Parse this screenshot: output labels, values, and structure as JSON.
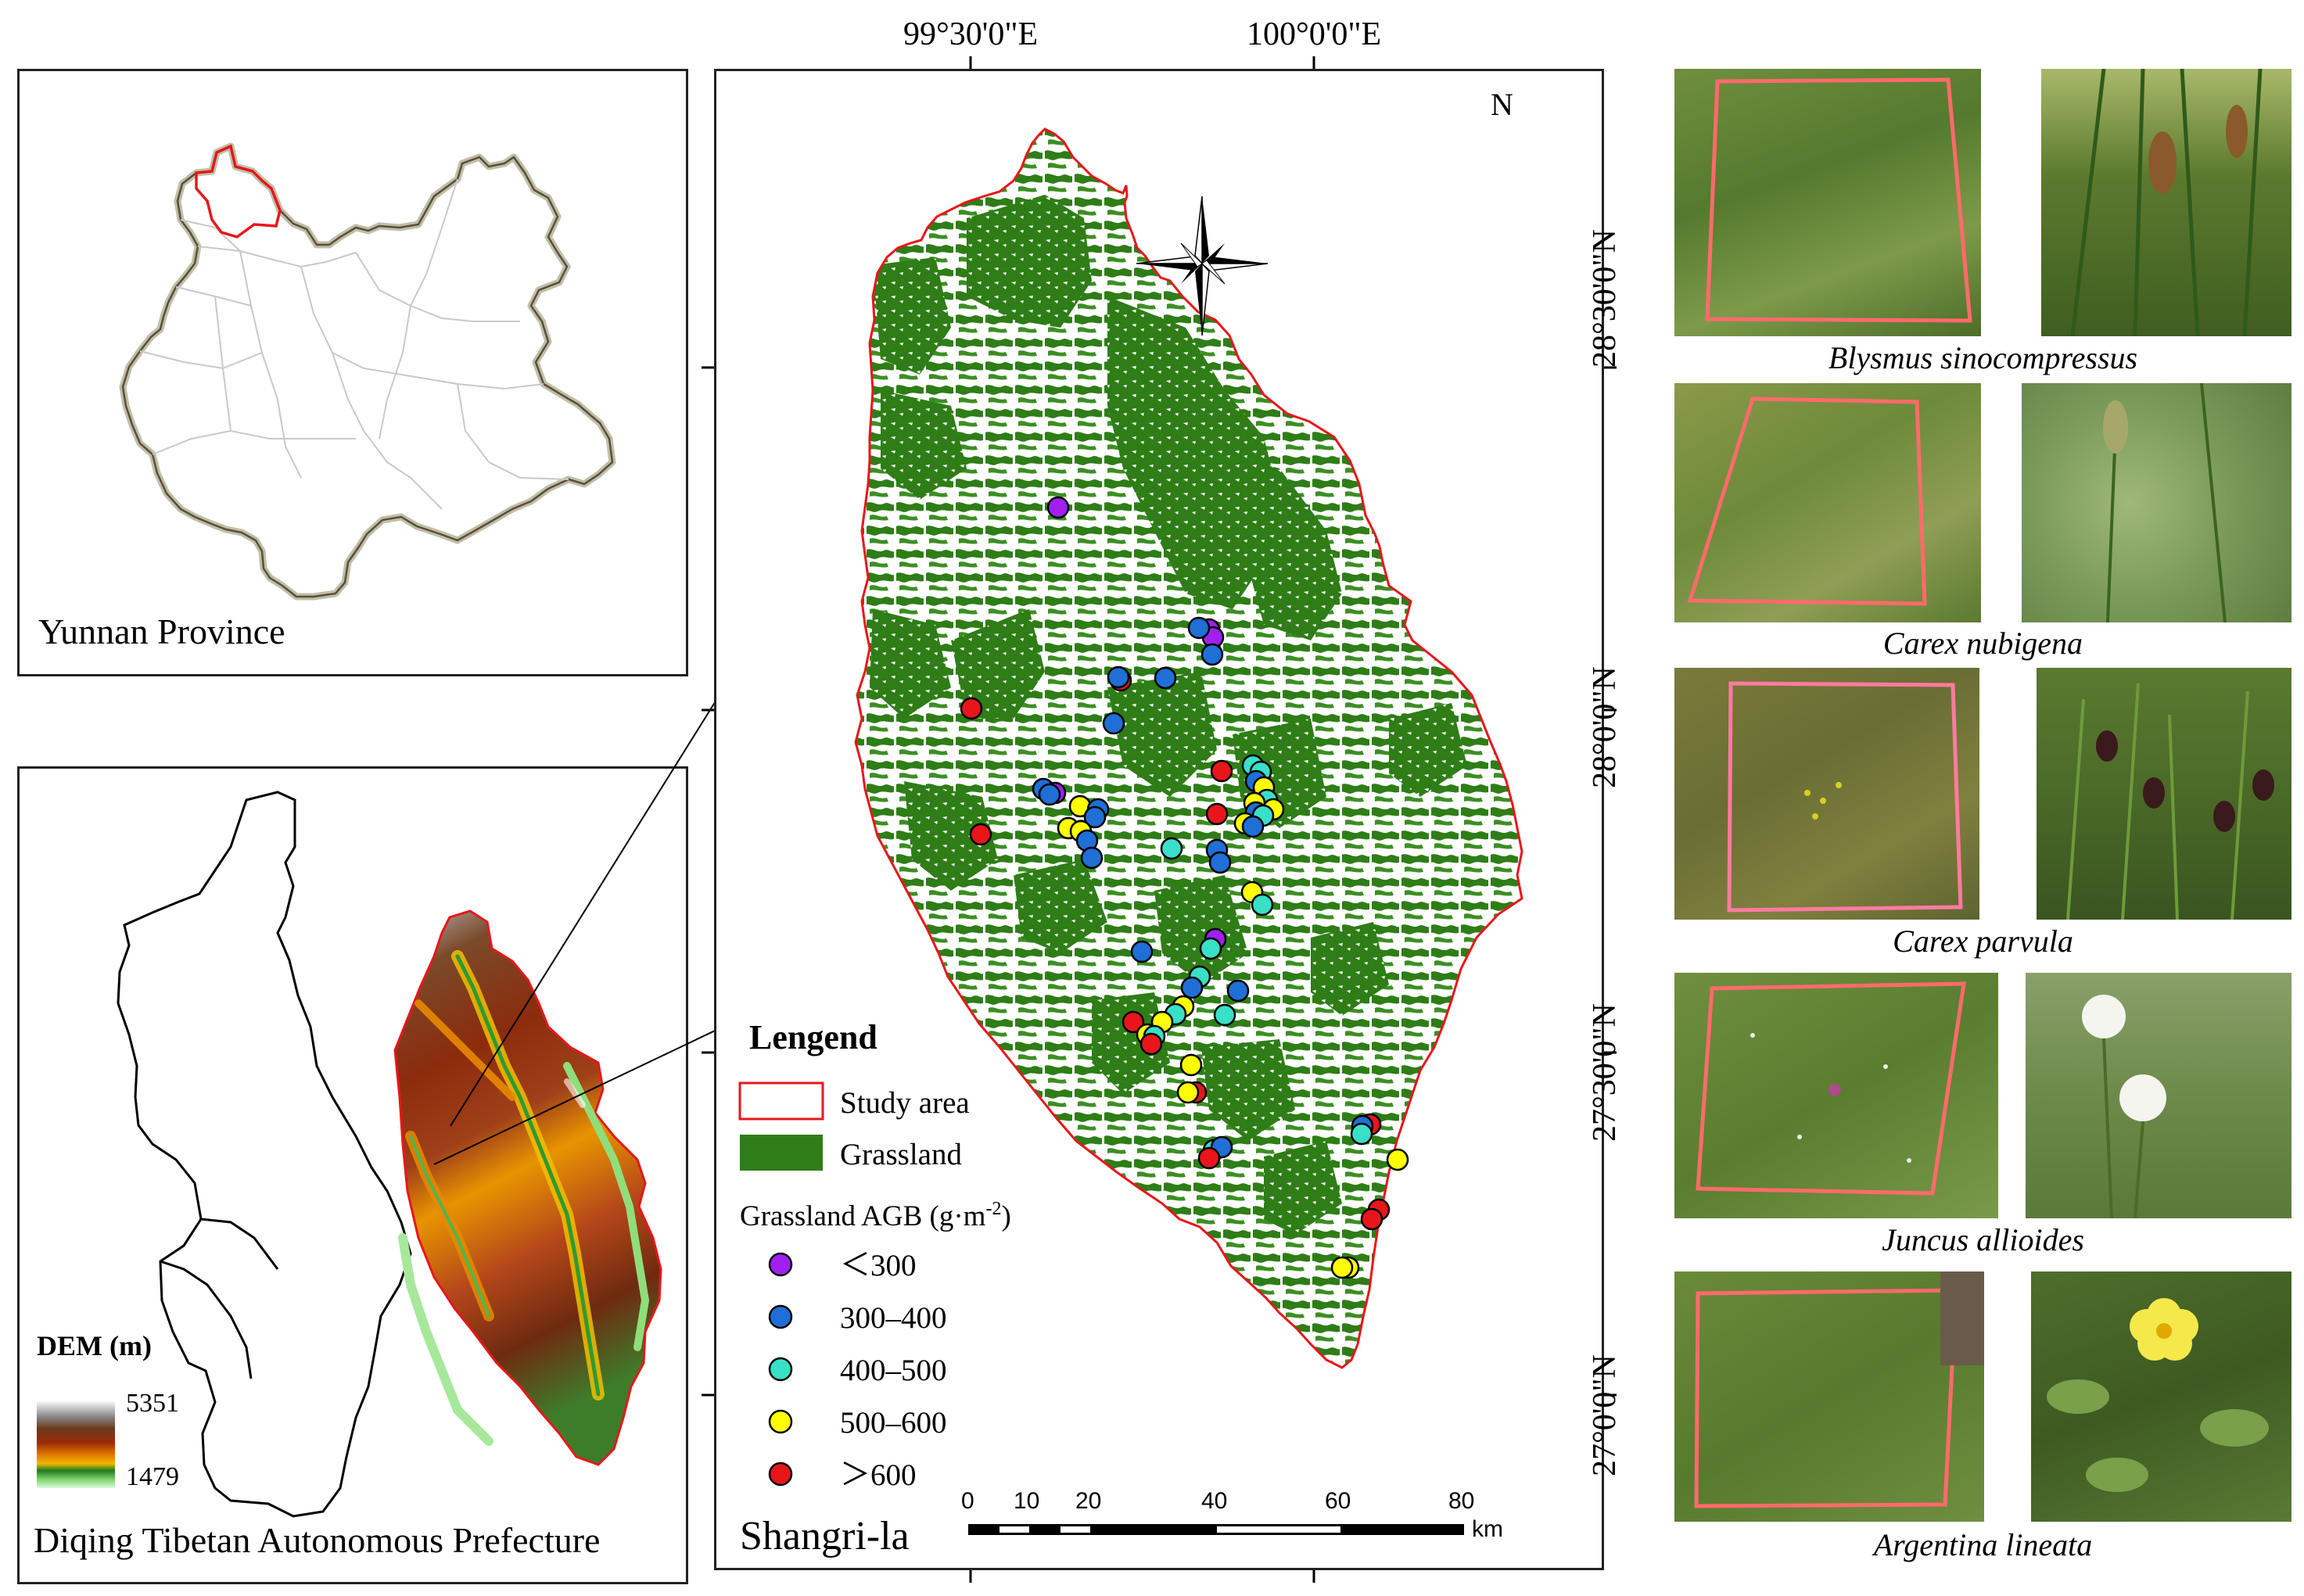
{
  "inset_yunnan": {
    "label": "Yunnan Province"
  },
  "inset_diqing": {
    "label": "Diqing Tibetan Autonomous Prefecture",
    "dem_title": "DEM (m)",
    "dem_max": "5351",
    "dem_min": "1479"
  },
  "main_map": {
    "name": "Shangri-la",
    "lon_labels": [
      "99°30'0\"E",
      "100°0'0\"E"
    ],
    "lat_labels": [
      "28°30'0\"N",
      "28°0'0\"N",
      "27°30'0\"N",
      "27°0'0\"N"
    ],
    "north": "N",
    "legend": {
      "title": "Lengend",
      "study_area": "Study area",
      "grassland": "Grassland",
      "agb_title": "Grassland AGB (g·m",
      "agb_sup": "-2",
      "agb_close": ")",
      "classes": [
        {
          "label": "＜300",
          "color": "#a020f0"
        },
        {
          "label": "300–400",
          "color": "#1f6fd6"
        },
        {
          "label": "400–500",
          "color": "#38e0c8"
        },
        {
          "label": "500–600",
          "color": "#ffff00"
        },
        {
          "label": "＞600",
          "color": "#e8161b"
        }
      ]
    },
    "scale": {
      "ticks": [
        "0",
        "10",
        "20",
        "40",
        "60",
        "80"
      ],
      "unit": "km"
    },
    "colors": {
      "study_area_outline": "#e8161b",
      "grassland": "#2e7d17"
    }
  },
  "species": [
    {
      "name": "Blysmus sinocompressus"
    },
    {
      "name": "Carex nubigena"
    },
    {
      "name": "Carex parvula"
    },
    {
      "name": "Juncus allioides"
    },
    {
      "name": "Argentina lineata"
    }
  ]
}
